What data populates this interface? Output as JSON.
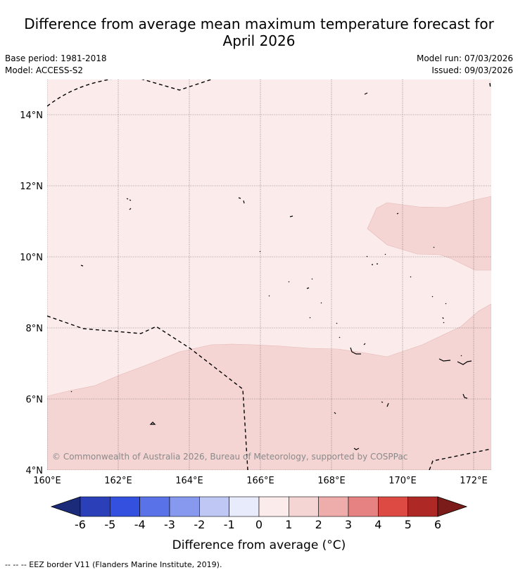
{
  "title_line1": "Difference from average mean maximum temperature forecast for",
  "title_line2": "April 2026",
  "base_period": "Base period: 1981-2018",
  "model": "Model: ACCESS-S2",
  "model_run": "Model run: 07/03/2026",
  "issued": "Issued: 09/03/2026",
  "copyright": "© Commonwealth of Australia 2026, Bureau of Meteorology, supported by COSPPac",
  "lon_labels": [
    "160°E",
    "162°E",
    "164°E",
    "166°E",
    "168°E",
    "170°E",
    "172°E"
  ],
  "lat_labels": [
    "14°N",
    "12°N",
    "10°N",
    "8°N",
    "6°N",
    "4°N"
  ],
  "colorbar": {
    "title": "Difference from average (°C)",
    "ticks": [
      "-6",
      "-5",
      "-4",
      "-3",
      "-2",
      "-1",
      "0",
      "1",
      "2",
      "3",
      "4",
      "5",
      "6"
    ],
    "colors": [
      "#1c2a7a",
      "#2b3fb8",
      "#3450de",
      "#5a72e8",
      "#8799ee",
      "#bfc8f5",
      "#e8ebfb",
      "#fbeceb",
      "#f4d5d4",
      "#eeacab",
      "#e68382",
      "#dd4a43",
      "#ae2925",
      "#7b1c1a"
    ]
  },
  "regions": {
    "lighter_class": "0 to 1",
    "darker_class": "1 to 2",
    "lighter_color": "#fbeceb",
    "darker_color": "#f4d5d4"
  },
  "footnote": "-- -- -- EEZ border V11 (Flanders Marine Institute, 2019)."
}
